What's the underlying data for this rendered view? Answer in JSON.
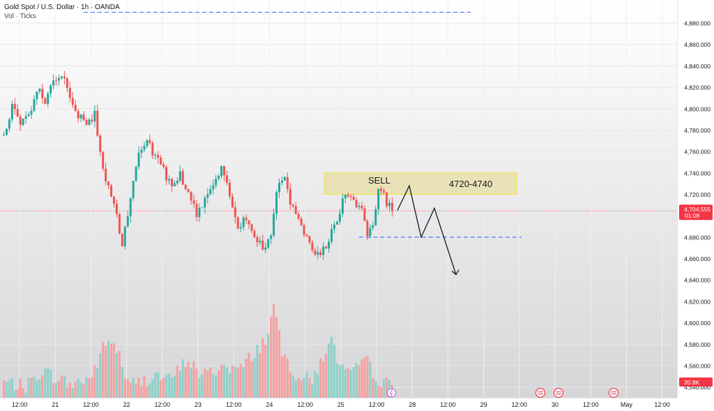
{
  "header": {
    "symbol_title": "Gold Spot / U.S. Dollar · 1h · OANDA",
    "volume_label": "Vol · Ticks"
  },
  "price_axis": {
    "ticks": [
      "4,880.000",
      "4,860.000",
      "4,840.000",
      "4,820.000",
      "4,800.000",
      "4,780.000",
      "4,760.000",
      "4,740.000",
      "4,720.000",
      "4,700.000",
      "4,680.000",
      "4,660.000",
      "4,640.000",
      "4,620.000",
      "4,600.000",
      "4,580.000",
      "4,560.000",
      "4,540.000"
    ],
    "current_price": "4,704.555",
    "countdown": "01:08",
    "volume_value": "20.8K"
  },
  "time_axis": {
    "labels": [
      "12:00",
      "21",
      "12:00",
      "22",
      "12:00",
      "23",
      "12:00",
      "24",
      "12:00",
      "25",
      "12:00",
      "28",
      "12:00",
      "29",
      "12:00",
      "30",
      "12:00",
      "May",
      "12:00"
    ]
  },
  "annotations": {
    "sell_label": "SELL",
    "zone_label": "4720-4740"
  },
  "colors": {
    "up": "#26a69a",
    "down": "#ef5350",
    "vol_up": "#8fd1c9",
    "vol_down": "#f3a3a1",
    "price_tag": "#f23645",
    "zone_fill": "#e8dfa3",
    "zone_border": "#f2e34b",
    "dashed_line": "#2962ff"
  },
  "chart_data": {
    "type": "candlestick",
    "title": "Gold Spot / U.S. Dollar · 1h · OANDA",
    "ylim": [
      4530,
      4895
    ],
    "price_points": [
      [
        0,
        4775
      ],
      [
        3,
        4800
      ],
      [
        6,
        4788
      ],
      [
        9,
        4792
      ],
      [
        12,
        4818
      ],
      [
        15,
        4808
      ],
      [
        18,
        4822
      ],
      [
        21,
        4830
      ],
      [
        24,
        4812
      ],
      [
        27,
        4795
      ],
      [
        30,
        4785
      ],
      [
        33,
        4795
      ],
      [
        35,
        4760
      ],
      [
        37,
        4735
      ],
      [
        40,
        4710
      ],
      [
        43,
        4675
      ],
      [
        46,
        4718
      ],
      [
        49,
        4755
      ],
      [
        52,
        4768
      ],
      [
        55,
        4755
      ],
      [
        58,
        4742
      ],
      [
        61,
        4725
      ],
      [
        64,
        4740
      ],
      [
        67,
        4720
      ],
      [
        70,
        4700
      ],
      [
        73,
        4718
      ],
      [
        76,
        4730
      ],
      [
        79,
        4742
      ],
      [
        82,
        4722
      ],
      [
        85,
        4690
      ],
      [
        88,
        4700
      ],
      [
        91,
        4680
      ],
      [
        94,
        4670
      ],
      [
        97,
        4680
      ],
      [
        99,
        4722
      ],
      [
        102,
        4740
      ],
      [
        104,
        4712
      ],
      [
        107,
        4695
      ],
      [
        110,
        4682
      ],
      [
        113,
        4662
      ],
      [
        116,
        4668
      ],
      [
        119,
        4685
      ],
      [
        122,
        4705
      ],
      [
        124,
        4722
      ],
      [
        127,
        4716
      ],
      [
        130,
        4705
      ],
      [
        132,
        4680
      ],
      [
        134,
        4690
      ],
      [
        136,
        4722
      ],
      [
        138,
        4718
      ],
      [
        141,
        4704.555
      ]
    ],
    "volume_points": [
      [
        0,
        4545
      ],
      [
        8,
        4540
      ],
      [
        14,
        4556
      ],
      [
        18,
        4550
      ],
      [
        25,
        4542
      ],
      [
        32,
        4550
      ],
      [
        36,
        4576
      ],
      [
        39,
        4584
      ],
      [
        42,
        4570
      ],
      [
        45,
        4542
      ],
      [
        50,
        4545
      ],
      [
        55,
        4552
      ],
      [
        60,
        4546
      ],
      [
        67,
        4566
      ],
      [
        72,
        4550
      ],
      [
        80,
        4560
      ],
      [
        86,
        4556
      ],
      [
        90,
        4570
      ],
      [
        95,
        4584
      ],
      [
        98,
        4615
      ],
      [
        101,
        4572
      ],
      [
        106,
        4552
      ],
      [
        112,
        4546
      ],
      [
        117,
        4575
      ],
      [
        119,
        4582
      ],
      [
        122,
        4560
      ],
      [
        126,
        4550
      ],
      [
        131,
        4566
      ],
      [
        137,
        4544
      ],
      [
        141,
        4542
      ]
    ],
    "projection_path": [
      [
        4705,
        4705
      ],
      [
        4728,
        4728
      ],
      [
        4680,
        4680
      ],
      [
        4707,
        4707
      ],
      [
        4645,
        4645
      ]
    ],
    "sell_zone": {
      "low": 4720,
      "high": 4740
    },
    "level_lines": [
      4890,
      4680
    ],
    "current_price": 4704.555,
    "volume_last": "20.8K"
  }
}
